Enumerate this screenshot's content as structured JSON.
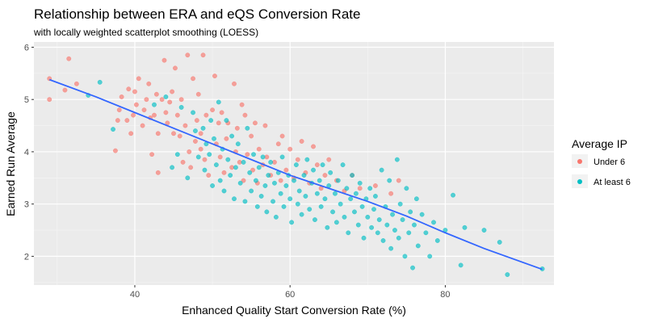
{
  "chart_data": {
    "type": "scatter",
    "title": "Relationship between ERA and eQS Conversion Rate",
    "subtitle": "with locally weighted scatterplot smoothing (LOESS)",
    "xlabel": "Enhanced Quality Start Conversion Rate (%)",
    "ylabel": "Earned Run Average",
    "xlim": [
      27,
      94
    ],
    "ylim": [
      1.45,
      6.1
    ],
    "xticks": [
      40,
      60,
      80
    ],
    "yticks": [
      2,
      3,
      4,
      5,
      6
    ],
    "grid": true,
    "legend": {
      "title": "Average IP",
      "position": "right"
    },
    "smooth_line": {
      "name": "LOESS",
      "color": "#3366ff",
      "x": [
        29,
        35,
        40,
        45,
        50,
        55,
        60,
        65,
        70,
        75,
        80,
        85,
        92.5
      ],
      "y": [
        5.38,
        5.05,
        4.75,
        4.45,
        4.15,
        3.85,
        3.55,
        3.3,
        3.05,
        2.77,
        2.45,
        2.15,
        1.75
      ]
    },
    "series": [
      {
        "name": "Under 6",
        "color": "#f8766d",
        "points": [
          [
            29,
            5.4
          ],
          [
            29,
            5.0
          ],
          [
            31.5,
            5.78
          ],
          [
            32.5,
            5.3
          ],
          [
            31,
            5.18
          ],
          [
            37.5,
            4.02
          ],
          [
            37.8,
            4.6
          ],
          [
            38,
            4.8
          ],
          [
            38.3,
            5.05
          ],
          [
            39,
            4.6
          ],
          [
            39.2,
            5.2
          ],
          [
            39.5,
            4.35
          ],
          [
            39.8,
            4.7
          ],
          [
            40,
            5.15
          ],
          [
            40.2,
            4.9
          ],
          [
            40.5,
            5.4
          ],
          [
            41,
            4.5
          ],
          [
            41.2,
            4.8
          ],
          [
            41.5,
            5.0
          ],
          [
            41.8,
            5.3
          ],
          [
            42,
            4.65
          ],
          [
            42.2,
            3.95
          ],
          [
            42.5,
            4.7
          ],
          [
            42.8,
            5.1
          ],
          [
            43,
            4.35
          ],
          [
            43,
            3.6
          ],
          [
            43.5,
            5.0
          ],
          [
            43.8,
            5.75
          ],
          [
            44,
            4.75
          ],
          [
            44.2,
            4.55
          ],
          [
            44.5,
            4.95
          ],
          [
            44.8,
            5.15
          ],
          [
            45,
            4.35
          ],
          [
            45.2,
            5.6
          ],
          [
            45.5,
            4.7
          ],
          [
            45.8,
            4.3
          ],
          [
            46,
            5.0
          ],
          [
            46.2,
            3.8
          ],
          [
            46.5,
            4.5
          ],
          [
            46.8,
            5.85
          ],
          [
            47,
            4.0
          ],
          [
            47.2,
            3.7
          ],
          [
            47.5,
            5.4
          ],
          [
            47.8,
            4.2
          ],
          [
            48,
            4.6
          ],
          [
            48.2,
            5.1
          ],
          [
            48.5,
            4.05
          ],
          [
            48.5,
            4.35
          ],
          [
            48.8,
            5.85
          ],
          [
            49,
            3.85
          ],
          [
            49.2,
            4.7
          ],
          [
            49.5,
            3.55
          ],
          [
            50,
            4.8
          ],
          [
            50.3,
            5.45
          ],
          [
            50.5,
            4.15
          ],
          [
            50.8,
            4.55
          ],
          [
            51,
            3.9
          ],
          [
            51.2,
            4.75
          ],
          [
            51.5,
            3.6
          ],
          [
            51.8,
            4.25
          ],
          [
            52,
            4.55
          ],
          [
            52.5,
            3.7
          ],
          [
            52.8,
            5.3
          ],
          [
            53,
            4.0
          ],
          [
            53.2,
            4.45
          ],
          [
            53.5,
            3.8
          ],
          [
            53.8,
            4.9
          ],
          [
            54,
            3.45
          ],
          [
            54.2,
            4.7
          ],
          [
            54.5,
            3.95
          ],
          [
            55,
            4.3
          ],
          [
            55.2,
            3.65
          ],
          [
            55.5,
            4.55
          ],
          [
            55.8,
            3.4
          ],
          [
            56,
            4.05
          ],
          [
            56.5,
            3.75
          ],
          [
            56.8,
            4.5
          ],
          [
            57,
            3.9
          ],
          [
            57.5,
            3.55
          ],
          [
            58,
            3.8
          ],
          [
            58.5,
            4.15
          ],
          [
            58.8,
            3.45
          ],
          [
            59,
            4.3
          ],
          [
            59.5,
            3.65
          ],
          [
            60,
            4.05
          ],
          [
            60.5,
            3.5
          ],
          [
            61,
            3.85
          ],
          [
            61.5,
            4.2
          ],
          [
            62,
            3.6
          ],
          [
            62.5,
            3.4
          ],
          [
            63,
            4.1
          ],
          [
            63.5,
            3.75
          ],
          [
            64,
            3.3
          ],
          [
            64.5,
            3.55
          ],
          [
            65,
            3.85
          ],
          [
            66,
            3.45
          ],
          [
            67,
            3.25
          ],
          [
            68,
            3.55
          ],
          [
            69,
            3.3
          ],
          [
            71,
            3.35
          ],
          [
            73,
            3.2
          ],
          [
            74,
            3.45
          ]
        ]
      },
      {
        "name": "At least 6",
        "color": "#00bfc4",
        "points": [
          [
            34,
            5.08
          ],
          [
            35.5,
            5.33
          ],
          [
            37.2,
            4.43
          ],
          [
            42.5,
            4.9
          ],
          [
            44,
            5.05
          ],
          [
            44.8,
            3.7
          ],
          [
            45.5,
            3.95
          ],
          [
            46,
            4.85
          ],
          [
            46.8,
            3.5
          ],
          [
            47.5,
            4.75
          ],
          [
            47.8,
            4.4
          ],
          [
            48.2,
            3.9
          ],
          [
            48.8,
            4.45
          ],
          [
            49,
            3.65
          ],
          [
            49.2,
            4.15
          ],
          [
            49.6,
            3.95
          ],
          [
            49.8,
            4.6
          ],
          [
            50,
            3.35
          ],
          [
            50.2,
            4.25
          ],
          [
            50.5,
            3.75
          ],
          [
            50.8,
            4.95
          ],
          [
            51,
            3.45
          ],
          [
            51.3,
            4.05
          ],
          [
            51.5,
            3.25
          ],
          [
            51.8,
            4.6
          ],
          [
            52,
            3.85
          ],
          [
            52.3,
            3.55
          ],
          [
            52.5,
            4.3
          ],
          [
            52.8,
            3.1
          ],
          [
            53,
            3.7
          ],
          [
            53.3,
            4.15
          ],
          [
            53.6,
            3.4
          ],
          [
            54,
            3.8
          ],
          [
            54.2,
            3.05
          ],
          [
            54.5,
            4.45
          ],
          [
            54.8,
            3.6
          ],
          [
            55,
            3.25
          ],
          [
            55.3,
            3.95
          ],
          [
            55.6,
            3.45
          ],
          [
            55.8,
            2.95
          ],
          [
            56,
            3.7
          ],
          [
            56.3,
            3.15
          ],
          [
            56.5,
            3.9
          ],
          [
            56.8,
            3.35
          ],
          [
            57,
            2.85
          ],
          [
            57.2,
            3.55
          ],
          [
            57.5,
            3.8
          ],
          [
            57.8,
            3.05
          ],
          [
            58,
            3.4
          ],
          [
            58.2,
            2.75
          ],
          [
            58.5,
            3.6
          ],
          [
            58.8,
            3.2
          ],
          [
            59,
            3.9
          ],
          [
            59.2,
            2.95
          ],
          [
            59.5,
            3.35
          ],
          [
            59.8,
            3.55
          ],
          [
            60,
            3.1
          ],
          [
            60.2,
            2.65
          ],
          [
            60.5,
            3.45
          ],
          [
            60.8,
            3.75
          ],
          [
            61,
            3.0
          ],
          [
            61.2,
            3.25
          ],
          [
            61.5,
            2.8
          ],
          [
            61.8,
            3.55
          ],
          [
            62,
            3.15
          ],
          [
            62.2,
            3.85
          ],
          [
            62.5,
            2.9
          ],
          [
            62.8,
            3.4
          ],
          [
            63,
            3.65
          ],
          [
            63.2,
            2.7
          ],
          [
            63.5,
            3.2
          ],
          [
            63.8,
            3.45
          ],
          [
            64,
            2.95
          ],
          [
            64.2,
            3.75
          ],
          [
            64.5,
            3.1
          ],
          [
            64.8,
            2.55
          ],
          [
            65,
            3.35
          ],
          [
            65.2,
            3.6
          ],
          [
            65.5,
            2.85
          ],
          [
            65.8,
            3.2
          ],
          [
            66,
            2.65
          ],
          [
            66.2,
            3.45
          ],
          [
            66.5,
            3.0
          ],
          [
            66.8,
            3.75
          ],
          [
            67,
            2.75
          ],
          [
            67.3,
            3.3
          ],
          [
            67.5,
            2.45
          ],
          [
            67.8,
            3.1
          ],
          [
            68,
            3.55
          ],
          [
            68.3,
            2.85
          ],
          [
            68.5,
            3.2
          ],
          [
            68.8,
            2.6
          ],
          [
            69,
            3.4
          ],
          [
            69.3,
            2.95
          ],
          [
            69.5,
            2.35
          ],
          [
            69.8,
            3.1
          ],
          [
            70,
            2.75
          ],
          [
            70.3,
            3.3
          ],
          [
            70.5,
            2.55
          ],
          [
            70.8,
            2.9
          ],
          [
            71,
            3.15
          ],
          [
            71.3,
            2.45
          ],
          [
            71.5,
            2.7
          ],
          [
            71.8,
            3.65
          ],
          [
            72,
            2.3
          ],
          [
            72.3,
            2.95
          ],
          [
            72.5,
            2.6
          ],
          [
            72.8,
            3.45
          ],
          [
            73,
            2.15
          ],
          [
            73.2,
            2.8
          ],
          [
            73.5,
            2.5
          ],
          [
            73.8,
            3.85
          ],
          [
            74,
            2.35
          ],
          [
            74.2,
            3.0
          ],
          [
            74.5,
            2.7
          ],
          [
            74.8,
            2.0
          ],
          [
            75,
            3.3
          ],
          [
            75.3,
            2.45
          ],
          [
            75.5,
            2.85
          ],
          [
            75.8,
            1.78
          ],
          [
            76,
            2.6
          ],
          [
            76.3,
            3.1
          ],
          [
            76.5,
            2.2
          ],
          [
            77,
            2.8
          ],
          [
            77.5,
            2.45
          ],
          [
            78,
            2.0
          ],
          [
            78.5,
            2.65
          ],
          [
            79,
            2.3
          ],
          [
            80,
            2.5
          ],
          [
            81,
            3.17
          ],
          [
            82,
            1.83
          ],
          [
            82.5,
            2.55
          ],
          [
            85,
            2.5
          ],
          [
            87,
            2.27
          ],
          [
            88,
            1.65
          ],
          [
            92.5,
            1.76
          ]
        ]
      }
    ]
  }
}
